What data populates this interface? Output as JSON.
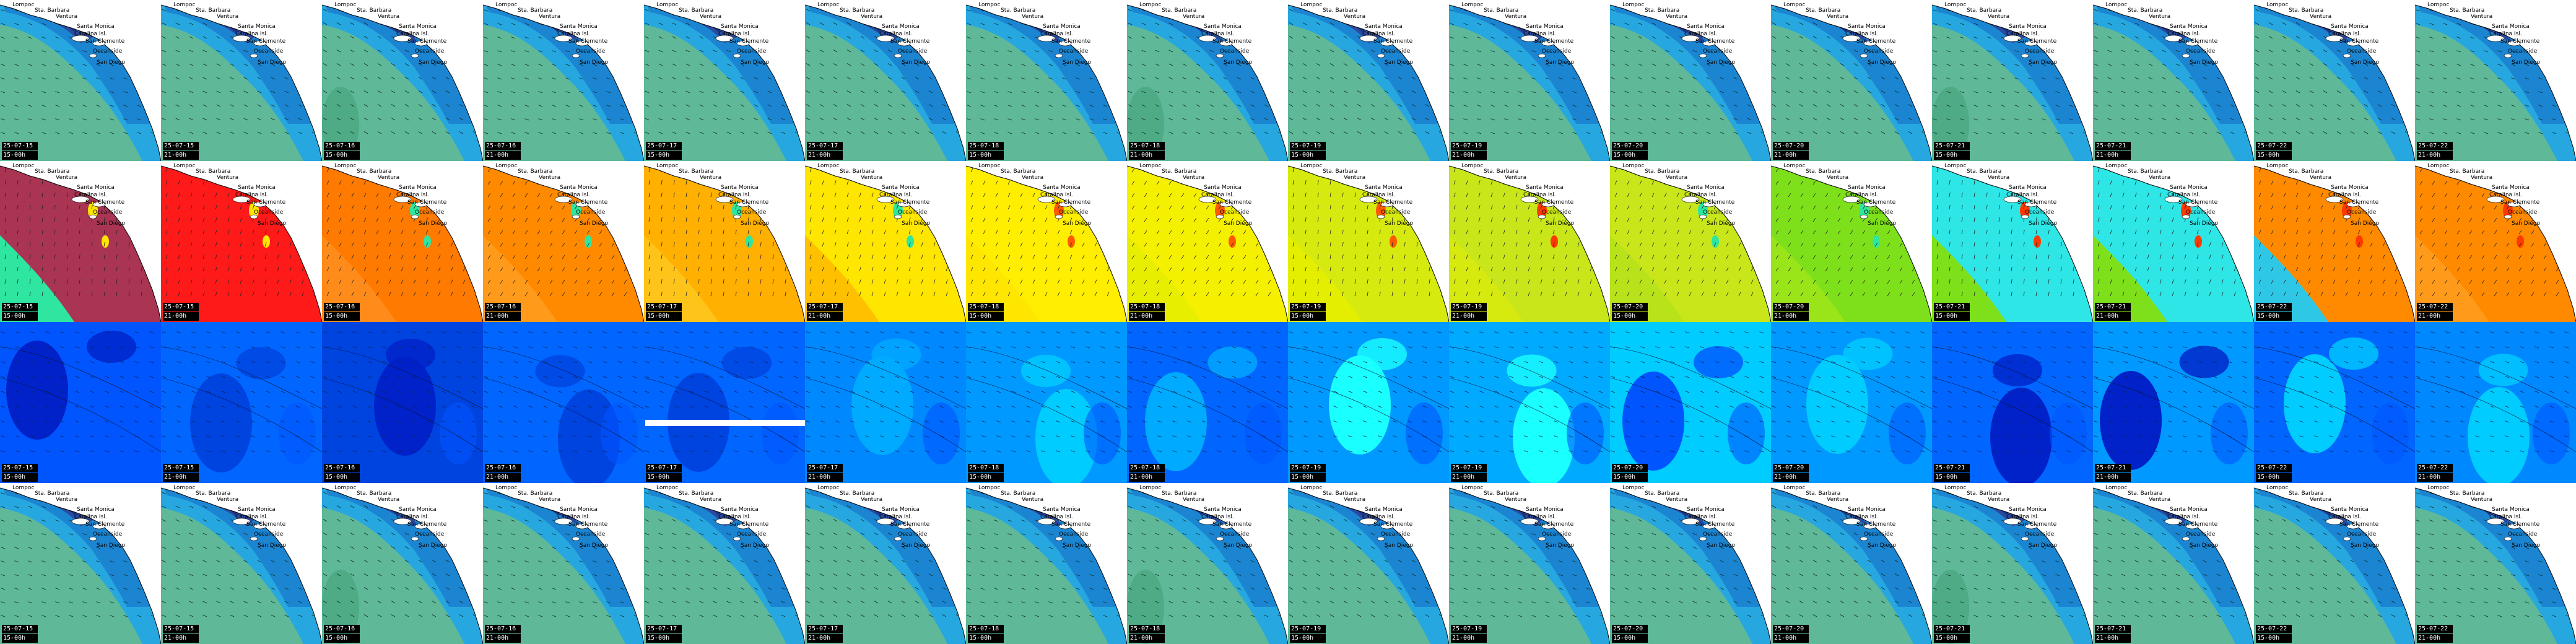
{
  "grid": {
    "rows": 4,
    "cols": 16
  },
  "places": [
    "Lompoc",
    "Sta. Barbara",
    "Ventura",
    "Santa Monica",
    "Catalina Isl.",
    "San Clemente",
    "Oceanside",
    "San Diego"
  ],
  "palettes": {
    "swell": [
      "#5fb898",
      "#27a7e0",
      "#1b7fcf",
      "#2a4aa0",
      "#16327a",
      "#ffffff"
    ],
    "wind": [
      "#a93553",
      "#ff1a1a",
      "#ff7a00",
      "#ffb000",
      "#ffe600",
      "#c8e61a",
      "#7ee01a",
      "#2ee6e6",
      "#ffffff"
    ],
    "period": [
      "#0022c8",
      "#0055ff",
      "#0099ff",
      "#00ccff",
      "#1affff"
    ]
  },
  "rows": [
    {
      "kind": "swell",
      "tiles": [
        {
          "date": "25-07-15",
          "time": "15-00h"
        },
        {
          "date": "25-07-15",
          "time": "21-00h"
        },
        {
          "date": "25-07-16",
          "time": "15-00h"
        },
        {
          "date": "25-07-16",
          "time": "21-00h"
        },
        {
          "date": "25-07-17",
          "time": "15-00h"
        },
        {
          "date": "25-07-17",
          "time": "21-00h"
        },
        {
          "date": "25-07-18",
          "time": "15-00h"
        },
        {
          "date": "25-07-18",
          "time": "21-00h"
        },
        {
          "date": "25-07-19",
          "time": "15-00h"
        },
        {
          "date": "25-07-19",
          "time": "21-00h"
        },
        {
          "date": "25-07-20",
          "time": "15-00h"
        },
        {
          "date": "25-07-20",
          "time": "21-00h"
        },
        {
          "date": "25-07-21",
          "time": "15-00h"
        },
        {
          "date": "25-07-21",
          "time": "21-00h"
        },
        {
          "date": "25-07-22",
          "time": "15-00h"
        },
        {
          "date": "25-07-22",
          "time": "21-00h"
        }
      ]
    },
    {
      "kind": "wind",
      "tiles": [
        {
          "date": "25-07-15",
          "time": "15-00h",
          "base": "#a93553",
          "alt": "#2ee6a0",
          "hot": "#ffe600"
        },
        {
          "date": "25-07-15",
          "time": "21-00h",
          "base": "#ff1a1a",
          "alt": "#ff1a1a",
          "hot": "#ffe600"
        },
        {
          "date": "25-07-16",
          "time": "15-00h",
          "base": "#ff7a00",
          "alt": "#ff8c1a",
          "hot": "#2ee6a0"
        },
        {
          "date": "25-07-16",
          "time": "21-00h",
          "base": "#ff8a00",
          "alt": "#ff9a1a",
          "hot": "#2ee6a0"
        },
        {
          "date": "25-07-17",
          "time": "15-00h",
          "base": "#ffb000",
          "alt": "#ffc41a",
          "hot": "#2ee6a0"
        },
        {
          "date": "25-07-17",
          "time": "21-00h",
          "base": "#ffe600",
          "alt": "#ffc000",
          "hot": "#2ee6a0"
        },
        {
          "date": "25-07-18",
          "time": "15-00h",
          "base": "#ffee00",
          "alt": "#ffe600",
          "hot": "#ff5a00"
        },
        {
          "date": "25-07-18",
          "time": "21-00h",
          "base": "#f4f000",
          "alt": "#e8ee00",
          "hot": "#ff5a00"
        },
        {
          "date": "25-07-19",
          "time": "15-00h",
          "base": "#d6ea10",
          "alt": "#e4ee00",
          "hot": "#ff5a00"
        },
        {
          "date": "25-07-19",
          "time": "21-00h",
          "base": "#c8e61a",
          "alt": "#d6ea10",
          "hot": "#ff3a00"
        },
        {
          "date": "25-07-20",
          "time": "15-00h",
          "base": "#c8e61a",
          "alt": "#b8e21a",
          "hot": "#2ee6a0"
        },
        {
          "date": "25-07-20",
          "time": "21-00h",
          "base": "#7ee01a",
          "alt": "#9ae41a",
          "hot": "#2ee6a0"
        },
        {
          "date": "25-07-21",
          "time": "15-00h",
          "base": "#2ee6e6",
          "alt": "#7ee01a",
          "hot": "#ff3a00"
        },
        {
          "date": "25-07-21",
          "time": "21-00h",
          "base": "#2ee6e6",
          "alt": "#7ee01a",
          "hot": "#ff3a00"
        },
        {
          "date": "25-07-22",
          "time": "15-00h",
          "base": "#ff8a00",
          "alt": "#2ec8e6",
          "hot": "#ff3a00"
        },
        {
          "date": "25-07-22",
          "time": "21-00h",
          "base": "#ff8a00",
          "alt": "#ff9a1a",
          "hot": "#ff3a00"
        }
      ]
    },
    {
      "kind": "period",
      "tiles": [
        {
          "date": "25-07-15",
          "time": "15-00h",
          "base": "#0055ff",
          "blob": "#0022c8"
        },
        {
          "date": "25-07-15",
          "time": "21-00h",
          "base": "#0066ff",
          "blob": "#0044e0"
        },
        {
          "date": "25-07-16",
          "time": "15-00h",
          "base": "#0044e0",
          "blob": "#0022c8"
        },
        {
          "date": "25-07-16",
          "time": "21-00h",
          "base": "#0066ff",
          "blob": "#0044e0"
        },
        {
          "date": "25-07-17",
          "time": "15-00h",
          "base": "#0066ff",
          "blob": "#0044e0"
        },
        {
          "date": "25-07-17",
          "time": "21-00h",
          "base": "#0088ff",
          "blob": "#00aaff"
        },
        {
          "date": "25-07-18",
          "time": "15-00h",
          "base": "#0099ff",
          "blob": "#00ccff"
        },
        {
          "date": "25-07-18",
          "time": "21-00h",
          "base": "#0066ff",
          "blob": "#00aaff"
        },
        {
          "date": "25-07-19",
          "time": "15-00h",
          "base": "#0099ff",
          "blob": "#1affff"
        },
        {
          "date": "25-07-19",
          "time": "21-00h",
          "base": "#00aaff",
          "blob": "#1affff"
        },
        {
          "date": "25-07-20",
          "time": "15-00h",
          "base": "#00ccff",
          "blob": "#0055ff"
        },
        {
          "date": "25-07-20",
          "time": "21-00h",
          "base": "#0099ff",
          "blob": "#00ccff"
        },
        {
          "date": "25-07-21",
          "time": "15-00h",
          "base": "#0066ff",
          "blob": "#0022c8"
        },
        {
          "date": "25-07-21",
          "time": "21-00h",
          "base": "#0099ff",
          "blob": "#0022c8"
        },
        {
          "date": "25-07-22",
          "time": "15-00h",
          "base": "#0066ff",
          "blob": "#00ccff"
        },
        {
          "date": "25-07-22",
          "time": "21-00h",
          "base": "#0088ff",
          "blob": "#00ccff"
        }
      ]
    },
    {
      "kind": "swell",
      "tiles": [
        {
          "date": "25-07-15",
          "time": "15-00h"
        },
        {
          "date": "25-07-15",
          "time": "21-00h"
        },
        {
          "date": "25-07-16",
          "time": "15-00h"
        },
        {
          "date": "25-07-16",
          "time": "21-00h"
        },
        {
          "date": "25-07-17",
          "time": "15-00h"
        },
        {
          "date": "25-07-17",
          "time": "21-00h"
        },
        {
          "date": "25-07-18",
          "time": "15-00h"
        },
        {
          "date": "25-07-18",
          "time": "21-00h"
        },
        {
          "date": "25-07-19",
          "time": "15-00h"
        },
        {
          "date": "25-07-19",
          "time": "21-00h"
        },
        {
          "date": "25-07-20",
          "time": "15-00h"
        },
        {
          "date": "25-07-20",
          "time": "21-00h"
        },
        {
          "date": "25-07-21",
          "time": "15-00h"
        },
        {
          "date": "25-07-21",
          "time": "21-00h"
        },
        {
          "date": "25-07-22",
          "time": "15-00h"
        },
        {
          "date": "25-07-22",
          "time": "21-00h"
        }
      ]
    }
  ]
}
